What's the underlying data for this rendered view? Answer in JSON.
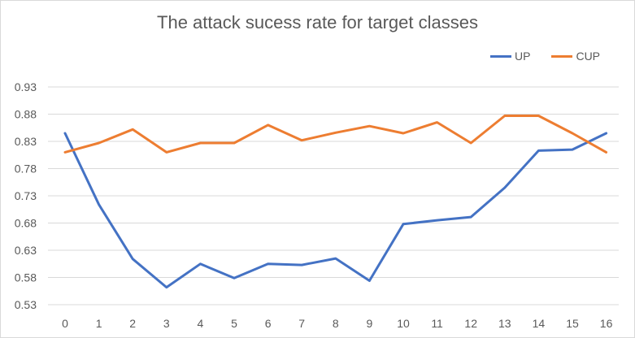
{
  "chart_data": {
    "type": "line",
    "title": "The attack sucess rate for target classes",
    "xlabel": "",
    "ylabel": "",
    "categories": [
      "0",
      "1",
      "2",
      "3",
      "4",
      "5",
      "6",
      "7",
      "8",
      "9",
      "10",
      "11",
      "12",
      "13",
      "14",
      "15",
      "16"
    ],
    "y_ticks": [
      "0.53",
      "0.58",
      "0.63",
      "0.68",
      "0.73",
      "0.78",
      "0.83",
      "0.88",
      "0.93"
    ],
    "ylim": [
      0.53,
      0.93
    ],
    "grid": true,
    "legend_position": "top-right",
    "series": [
      {
        "name": "UP",
        "color": "#4472C4",
        "values": [
          0.845,
          0.714,
          0.614,
          0.562,
          0.605,
          0.579,
          0.605,
          0.603,
          0.615,
          0.574,
          0.678,
          0.685,
          0.691,
          0.745,
          0.813,
          0.815,
          0.845
        ]
      },
      {
        "name": "CUP",
        "color": "#ED7D31",
        "values": [
          0.81,
          0.827,
          0.852,
          0.81,
          0.827,
          0.827,
          0.86,
          0.832,
          0.846,
          0.858,
          0.845,
          0.865,
          0.827,
          0.877,
          0.877,
          0.845,
          0.81
        ]
      }
    ]
  }
}
